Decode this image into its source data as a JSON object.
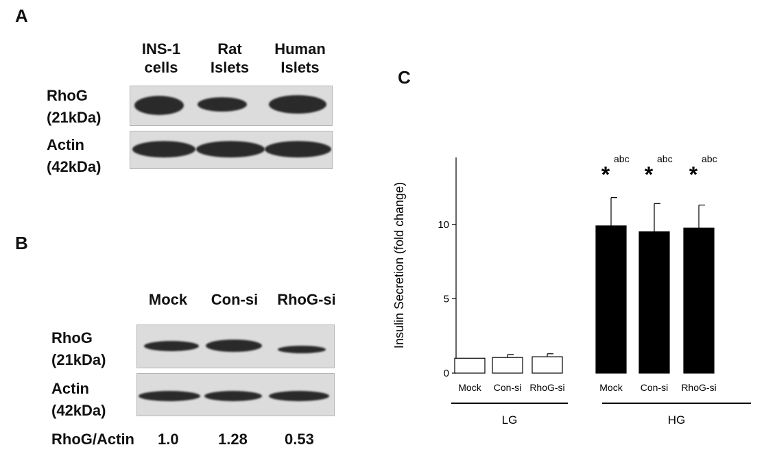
{
  "panel_a": {
    "letter": "A",
    "lanes": [
      {
        "line1": "INS-1",
        "line2": "cells"
      },
      {
        "line1": "Rat",
        "line2": "Islets"
      },
      {
        "line1": "Human",
        "line2": "Islets"
      }
    ],
    "rhog_label": {
      "line1": "RhoG",
      "line2": "(21kDa)"
    },
    "actin_label": {
      "line1": "Actin",
      "line2": "(42kDa)"
    }
  },
  "panel_b": {
    "letter": "B",
    "lanes": [
      "Mock",
      "Con-si",
      "RhoG-si"
    ],
    "rhog_label": {
      "line1": "RhoG",
      "line2": "(21kDa)"
    },
    "actin_label": {
      "line1": "Actin",
      "line2": "(42kDa)"
    },
    "ratio_label": "RhoG/Actin",
    "ratios": [
      "1.0",
      "1.28",
      "0.53"
    ]
  },
  "panel_c": {
    "letter": "C"
  },
  "chart_data": {
    "type": "bar",
    "title": "",
    "xlabel": "",
    "ylabel": "Insulin Secretion (fold change)",
    "ylim": [
      0,
      14.5
    ],
    "yticks": [
      0,
      5,
      10
    ],
    "categories": [
      "Mock",
      "Con-si",
      "RhoG-si",
      "Mock",
      "Con-si",
      "RhoG-si"
    ],
    "groups": [
      {
        "label": "LG",
        "categories": [
          "Mock",
          "Con-si",
          "RhoG-si"
        ]
      },
      {
        "label": "HG",
        "categories": [
          "Mock",
          "Con-si",
          "RhoG-si"
        ]
      }
    ],
    "values": [
      1.0,
      1.05,
      1.1,
      9.9,
      9.5,
      9.75
    ],
    "errors": [
      0.0,
      0.2,
      0.2,
      1.9,
      1.9,
      1.55
    ],
    "fill_colors": [
      "#ffffff",
      "#ffffff",
      "#ffffff",
      "#000000",
      "#000000",
      "#000000"
    ],
    "annotations": [
      {
        "bar_index": 3,
        "symbol": "*",
        "superscript": "abc"
      },
      {
        "bar_index": 4,
        "symbol": "*",
        "superscript": "abc"
      },
      {
        "bar_index": 5,
        "symbol": "*",
        "superscript": "abc"
      }
    ],
    "grid": false,
    "legend": "none"
  }
}
